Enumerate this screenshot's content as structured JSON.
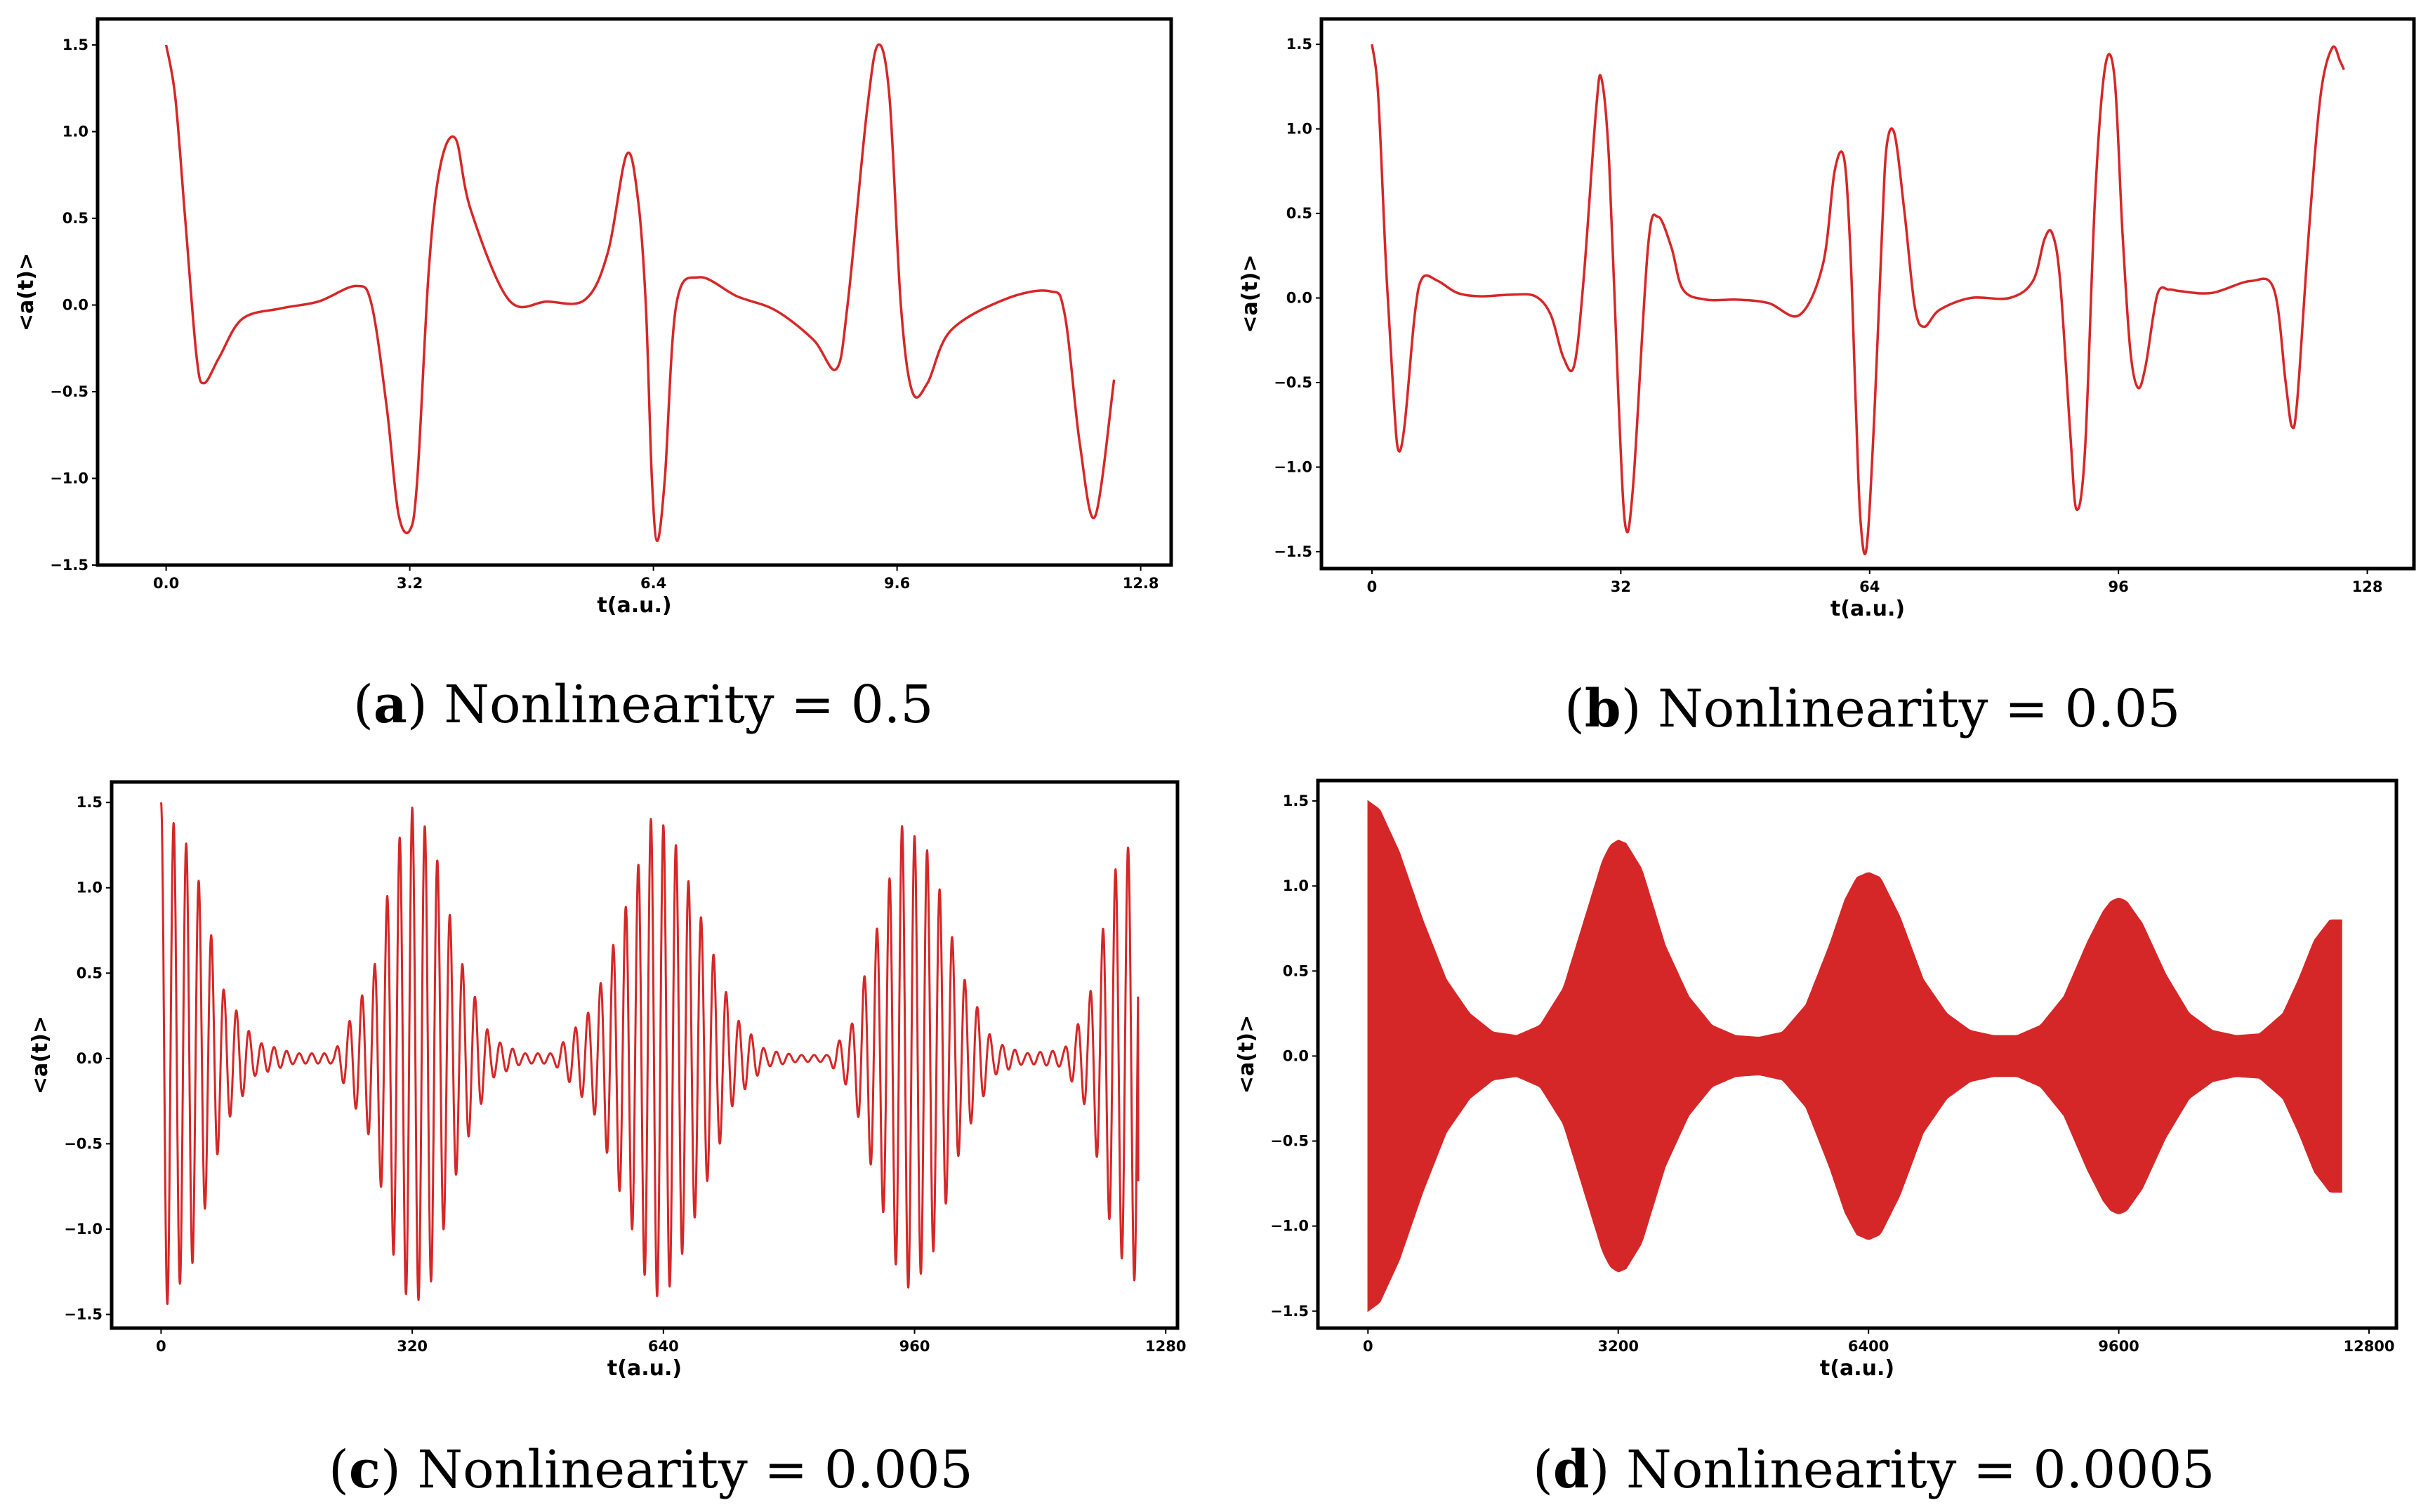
{
  "figure": {
    "colors": {
      "line": "#d62728",
      "axes": "#000000"
    }
  },
  "chart_data": [
    {
      "id": "a",
      "type": "line",
      "caption_letter": "a",
      "caption_text": " Nonlinearity = 0.5",
      "xlabel": "t(a.u.)",
      "ylabel": "<a(t)>",
      "xlim": [
        -0.9,
        13.2
      ],
      "ylim": [
        -1.5,
        1.65
      ],
      "xticks": [
        0.0,
        3.2,
        6.4,
        9.6,
        12.8
      ],
      "xtick_labels": [
        "0.0",
        "3.2",
        "6.4",
        "9.6",
        "12.8"
      ],
      "yticks": [
        -1.5,
        -1.0,
        -0.5,
        0.0,
        0.5,
        1.0,
        1.5
      ],
      "ytick_labels": [
        "−1.5",
        "−1.0",
        "−0.5",
        "0.0",
        "0.5",
        "1.0",
        "1.5"
      ],
      "style": "smooth",
      "x": [
        0.0,
        0.12,
        0.25,
        0.4,
        0.5,
        0.7,
        1.0,
        1.5,
        2.0,
        2.5,
        2.7,
        2.9,
        3.05,
        3.2,
        3.3,
        3.45,
        3.6,
        3.8,
        4.0,
        4.5,
        5.0,
        5.5,
        5.8,
        6.05,
        6.2,
        6.3,
        6.38,
        6.45,
        6.55,
        6.7,
        7.0,
        7.5,
        8.0,
        8.5,
        8.8,
        8.95,
        9.2,
        9.35,
        9.5,
        9.65,
        9.8,
        10.0,
        10.3,
        11.0,
        11.6,
        11.8,
        12.0,
        12.2,
        12.45
      ],
      "y": [
        1.5,
        1.2,
        0.5,
        -0.3,
        -0.45,
        -0.3,
        -0.08,
        -0.02,
        0.02,
        0.11,
        0.0,
        -0.6,
        -1.2,
        -1.3,
        -1.0,
        0.2,
        0.8,
        0.96,
        0.55,
        0.03,
        0.02,
        0.03,
        0.3,
        0.87,
        0.6,
        0.0,
        -1.0,
        -1.36,
        -1.0,
        0.0,
        0.16,
        0.05,
        -0.03,
        -0.2,
        -0.37,
        0.0,
        1.1,
        1.5,
        1.2,
        0.0,
        -0.5,
        -0.45,
        -0.15,
        0.03,
        0.08,
        -0.05,
        -0.8,
        -1.22,
        -0.43
      ]
    },
    {
      "id": "b",
      "type": "line",
      "caption_letter": "b",
      "caption_text": " Nonlinearity = 0.05",
      "xlabel": "t(a.u.)",
      "ylabel": "<a(t)>",
      "xlim": [
        -6.5,
        134
      ],
      "ylim": [
        -1.6,
        1.65
      ],
      "xticks": [
        0,
        32,
        64,
        96,
        128
      ],
      "xtick_labels": [
        "0",
        "32",
        "64",
        "96",
        "128"
      ],
      "yticks": [
        -1.5,
        -1.0,
        -0.5,
        0.0,
        0.5,
        1.0,
        1.5
      ],
      "ytick_labels": [
        "−1.5",
        "−1.0",
        "−0.5",
        "0.0",
        "0.5",
        "1.0",
        "1.5"
      ],
      "style": "smooth",
      "x": [
        0.0,
        0.8,
        1.8,
        2.8,
        3.4,
        4.2,
        5.5,
        6.5,
        8.5,
        11,
        14,
        18,
        21,
        23,
        24.6,
        26,
        27.2,
        28.8,
        29.5,
        30.5,
        31.7,
        32.6,
        33.6,
        35.5,
        36.8,
        38.5,
        40,
        43,
        47,
        51,
        55,
        58,
        59.5,
        60.7,
        61.5,
        62.2,
        62.8,
        63.6,
        64.6,
        65.6,
        66.2,
        67.2,
        68.5,
        69.8,
        71,
        73,
        77,
        82,
        85,
        86.5,
        87.5,
        88.5,
        89.8,
        90.6,
        91.7,
        93,
        94.3,
        95.5,
        96.5,
        97.5,
        98.5,
        99.5,
        101,
        102.5,
        104,
        108,
        113,
        116,
        117.5,
        118.3,
        119,
        120.5,
        122,
        123.5,
        124.5,
        125
      ],
      "y": [
        1.5,
        1.2,
        0.2,
        -0.6,
        -0.9,
        -0.75,
        -0.1,
        0.12,
        0.1,
        0.03,
        0.01,
        0.02,
        0.01,
        -0.1,
        -0.35,
        -0.4,
        0.1,
        1.1,
        1.3,
        0.8,
        -0.6,
        -1.35,
        -1.1,
        0.3,
        0.48,
        0.3,
        0.05,
        -0.01,
        -0.01,
        -0.03,
        -0.1,
        0.2,
        0.75,
        0.83,
        0.3,
        -0.6,
        -1.3,
        -1.48,
        -0.7,
        0.4,
        0.9,
        0.97,
        0.5,
        -0.05,
        -0.17,
        -0.07,
        0.0,
        0.0,
        0.1,
        0.35,
        0.38,
        0.1,
        -0.8,
        -1.25,
        -0.9,
        0.6,
        1.37,
        1.3,
        0.4,
        -0.3,
        -0.53,
        -0.4,
        0.02,
        0.05,
        0.04,
        0.03,
        0.1,
        0.05,
        -0.5,
        -0.76,
        -0.6,
        0.4,
        1.2,
        1.48,
        1.4,
        1.35
      ]
    },
    {
      "id": "c",
      "type": "line",
      "caption_letter": "c",
      "caption_text": " Nonlinearity = 0.005",
      "xlabel": "t(a.u.)",
      "ylabel": "<a(t)>",
      "xlim": [
        -63,
        1295
      ],
      "ylim": [
        -1.58,
        1.62
      ],
      "xticks": [
        0,
        320,
        640,
        960,
        1280
      ],
      "xtick_labels": [
        "0",
        "320",
        "640",
        "960",
        "1280"
      ],
      "yticks": [
        -1.5,
        -1.0,
        -0.5,
        0.0,
        0.5,
        1.0,
        1.5
      ],
      "ytick_labels": [
        "−1.5",
        "−1.0",
        "−0.5",
        "0.0",
        "0.5",
        "1.0",
        "1.5"
      ],
      "style": "oscillation",
      "x_end": 1245,
      "oscillation_period": 16,
      "envelope": {
        "t": [
          0,
          40,
          80,
          120,
          170,
          220,
          270,
          300,
          320,
          345,
          380,
          420,
          460,
          500,
          550,
          600,
          625,
          650,
          690,
          730,
          770,
          810,
          850,
          880,
          920,
          945,
          980,
          1020,
          1060,
          1100,
          1150,
          1180,
          1215,
          1245
        ],
        "amp": [
          1.5,
          1.2,
          0.4,
          0.1,
          0.03,
          0.03,
          0.5,
          1.25,
          1.47,
          1.3,
          0.6,
          0.12,
          0.03,
          0.03,
          0.3,
          1.0,
          1.42,
          1.33,
          0.8,
          0.25,
          0.05,
          0.02,
          0.02,
          0.2,
          0.9,
          1.38,
          1.2,
          0.5,
          0.1,
          0.03,
          0.05,
          0.3,
          1.1,
          1.34
        ]
      },
      "end_value": -0.72
    },
    {
      "id": "d",
      "type": "area",
      "caption_letter": "d",
      "caption_text": " Nonlinearity = 0.0005",
      "xlabel": "t(a.u.)",
      "ylabel": "<a(t)>",
      "xlim": [
        -640,
        13150
      ],
      "ylim": [
        -1.6,
        1.62
      ],
      "xticks": [
        0,
        3200,
        6400,
        9600,
        12800
      ],
      "xtick_labels": [
        "0",
        "3200",
        "6400",
        "9600",
        "12800"
      ],
      "yticks": [
        -1.5,
        -1.0,
        -0.5,
        0.0,
        0.5,
        1.0,
        1.5
      ],
      "ytick_labels": [
        "−1.5",
        "−1.0",
        "−0.5",
        "0.0",
        "0.5",
        "1.0",
        "1.5"
      ],
      "style": "envelope",
      "envelope": {
        "t": [
          0,
          150,
          400,
          700,
          1000,
          1300,
          1600,
          1900,
          2200,
          2500,
          2800,
          3000,
          3100,
          3200,
          3300,
          3500,
          3800,
          4100,
          4400,
          4700,
          5000,
          5300,
          5600,
          5900,
          6100,
          6250,
          6400,
          6550,
          6800,
          7100,
          7400,
          7700,
          8000,
          8300,
          8600,
          8900,
          9200,
          9400,
          9500,
          9600,
          9700,
          9900,
          10200,
          10500,
          10800,
          11100,
          11400,
          11700,
          11900,
          12100,
          12300,
          12450
        ],
        "amp": [
          1.5,
          1.45,
          1.2,
          0.8,
          0.45,
          0.25,
          0.14,
          0.12,
          0.18,
          0.4,
          0.85,
          1.15,
          1.24,
          1.27,
          1.25,
          1.1,
          0.65,
          0.35,
          0.18,
          0.12,
          0.11,
          0.14,
          0.3,
          0.65,
          0.92,
          1.05,
          1.08,
          1.05,
          0.82,
          0.45,
          0.25,
          0.15,
          0.12,
          0.12,
          0.18,
          0.35,
          0.67,
          0.85,
          0.91,
          0.93,
          0.91,
          0.78,
          0.48,
          0.25,
          0.15,
          0.12,
          0.13,
          0.25,
          0.45,
          0.68,
          0.8,
          0.8
        ]
      }
    }
  ]
}
